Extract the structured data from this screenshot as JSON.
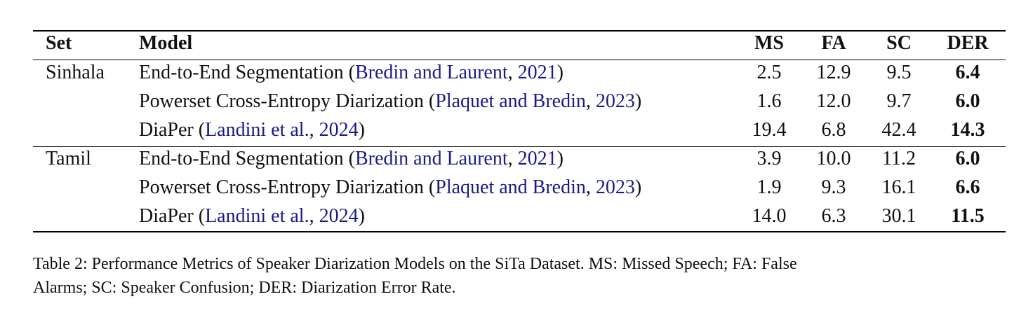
{
  "table": {
    "headers": {
      "set": "Set",
      "model": "Model",
      "ms": "MS",
      "fa": "FA",
      "sc": "SC",
      "der": "DER"
    },
    "rows": [
      {
        "set": "Sinhala",
        "model_prefix": "End-to-End Segmentation (",
        "cite_authors": "Bredin and Laurent",
        "cite_sep": ", ",
        "cite_year": "2021",
        "model_suffix": ")",
        "ms": "2.5",
        "fa": "12.9",
        "sc": "9.5",
        "der": "6.4"
      },
      {
        "set": "",
        "model_prefix": "Powerset Cross-Entropy Diarization (",
        "cite_authors": "Plaquet and Bredin",
        "cite_sep": ", ",
        "cite_year": "2023",
        "model_suffix": ")",
        "ms": "1.6",
        "fa": "12.0",
        "sc": "9.7",
        "der": "6.0"
      },
      {
        "set": "",
        "model_prefix": "DiaPer (",
        "cite_authors": "Landini et al.",
        "cite_sep": ", ",
        "cite_year": "2024",
        "model_suffix": ")",
        "ms": "19.4",
        "fa": "6.8",
        "sc": "42.4",
        "der": "14.3"
      },
      {
        "set": "Tamil",
        "model_prefix": "End-to-End Segmentation (",
        "cite_authors": "Bredin and Laurent",
        "cite_sep": ", ",
        "cite_year": "2021",
        "model_suffix": ")",
        "ms": "3.9",
        "fa": "10.0",
        "sc": "11.2",
        "der": "6.0"
      },
      {
        "set": "",
        "model_prefix": "Powerset Cross-Entropy Diarization (",
        "cite_authors": "Plaquet and Bredin",
        "cite_sep": ", ",
        "cite_year": "2023",
        "model_suffix": ")",
        "ms": "1.9",
        "fa": "9.3",
        "sc": "16.1",
        "der": "6.6"
      },
      {
        "set": "",
        "model_prefix": "DiaPer (",
        "cite_authors": "Landini et al.",
        "cite_sep": ", ",
        "cite_year": "2024",
        "model_suffix": ")",
        "ms": "14.0",
        "fa": "6.3",
        "sc": "30.1",
        "der": "11.5"
      }
    ]
  },
  "caption": {
    "line1": "Table 2:  Performance Metrics of Speaker Diarization Models on the SiTa Dataset. MS: Missed Speech; FA: False",
    "line2": "Alarms; SC: Speaker Confusion; DER: Diarization Error Rate."
  },
  "colors": {
    "citation": "#1a1a8c",
    "text": "#111111",
    "rule": "#000000"
  }
}
